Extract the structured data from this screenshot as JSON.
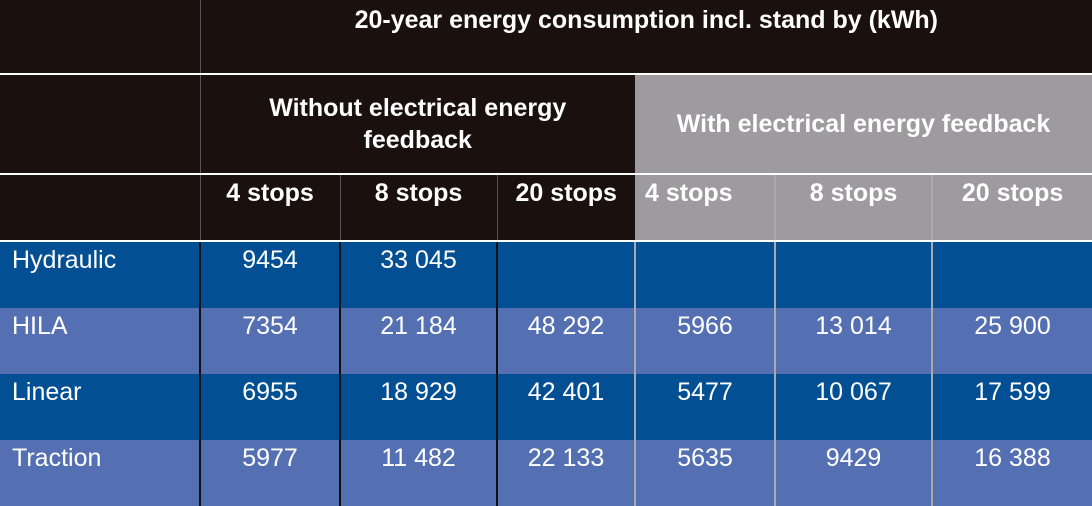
{
  "title": "20-year energy consumption incl. stand by (kWh)",
  "group_without": "Without electrical energy feedback",
  "group_with": "With electrical energy feedback",
  "columns": [
    "4 stops",
    "8 stops",
    "20 stops",
    "4 stops",
    "8 stops",
    "20 stops"
  ],
  "rows": [
    {
      "label": "Hydraulic",
      "values": [
        "9454",
        "33 045",
        "",
        "",
        "",
        ""
      ]
    },
    {
      "label": "HILA",
      "values": [
        "7354",
        "21 184",
        "48 292",
        "5966",
        "13 014",
        "25 900"
      ]
    },
    {
      "label": "Linear",
      "values": [
        "6955",
        "18 929",
        "42 401",
        "5477",
        "10 067",
        "17 599"
      ]
    },
    {
      "label": "Traction",
      "values": [
        "5977",
        "11 482",
        "22 133",
        "5635",
        "9429",
        "16 388"
      ]
    }
  ],
  "colors": {
    "header_dark": "#1a110e",
    "header_gray": "#9d9b9f",
    "row_dark": "#034f93",
    "row_light": "#5470b2"
  }
}
